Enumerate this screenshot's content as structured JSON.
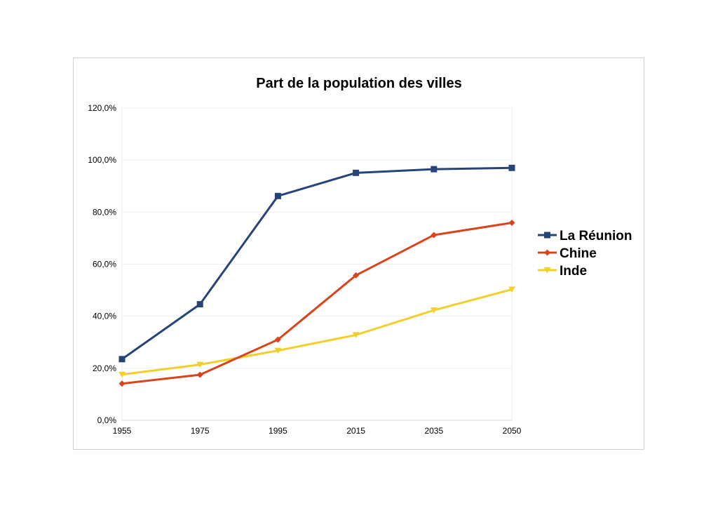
{
  "chart_data": {
    "type": "line",
    "title": "Part de la population des villes",
    "xlabel": "",
    "ylabel": "",
    "categories": [
      "1955",
      "1975",
      "1995",
      "2015",
      "2035",
      "2050"
    ],
    "y_ticks": [
      "0,0%",
      "20,0%",
      "40,0%",
      "60,0%",
      "80,0%",
      "100,0%",
      "120,0%"
    ],
    "ylim": [
      0,
      120
    ],
    "grid": true,
    "legend_position": "right",
    "series": [
      {
        "name": "La Réunion",
        "color": "#264478",
        "marker": "square",
        "values": [
          23.5,
          44.6,
          86.2,
          95.1,
          96.5,
          97.0
        ]
      },
      {
        "name": "Chine",
        "color": "#D9441B",
        "marker": "diamond",
        "values": [
          14.1,
          17.5,
          31.0,
          55.7,
          71.2,
          75.9
        ]
      },
      {
        "name": "Inde",
        "color": "#F2CF2B",
        "marker": "triangle-down",
        "values": [
          17.6,
          21.4,
          26.8,
          32.8,
          42.3,
          50.3
        ]
      }
    ]
  }
}
